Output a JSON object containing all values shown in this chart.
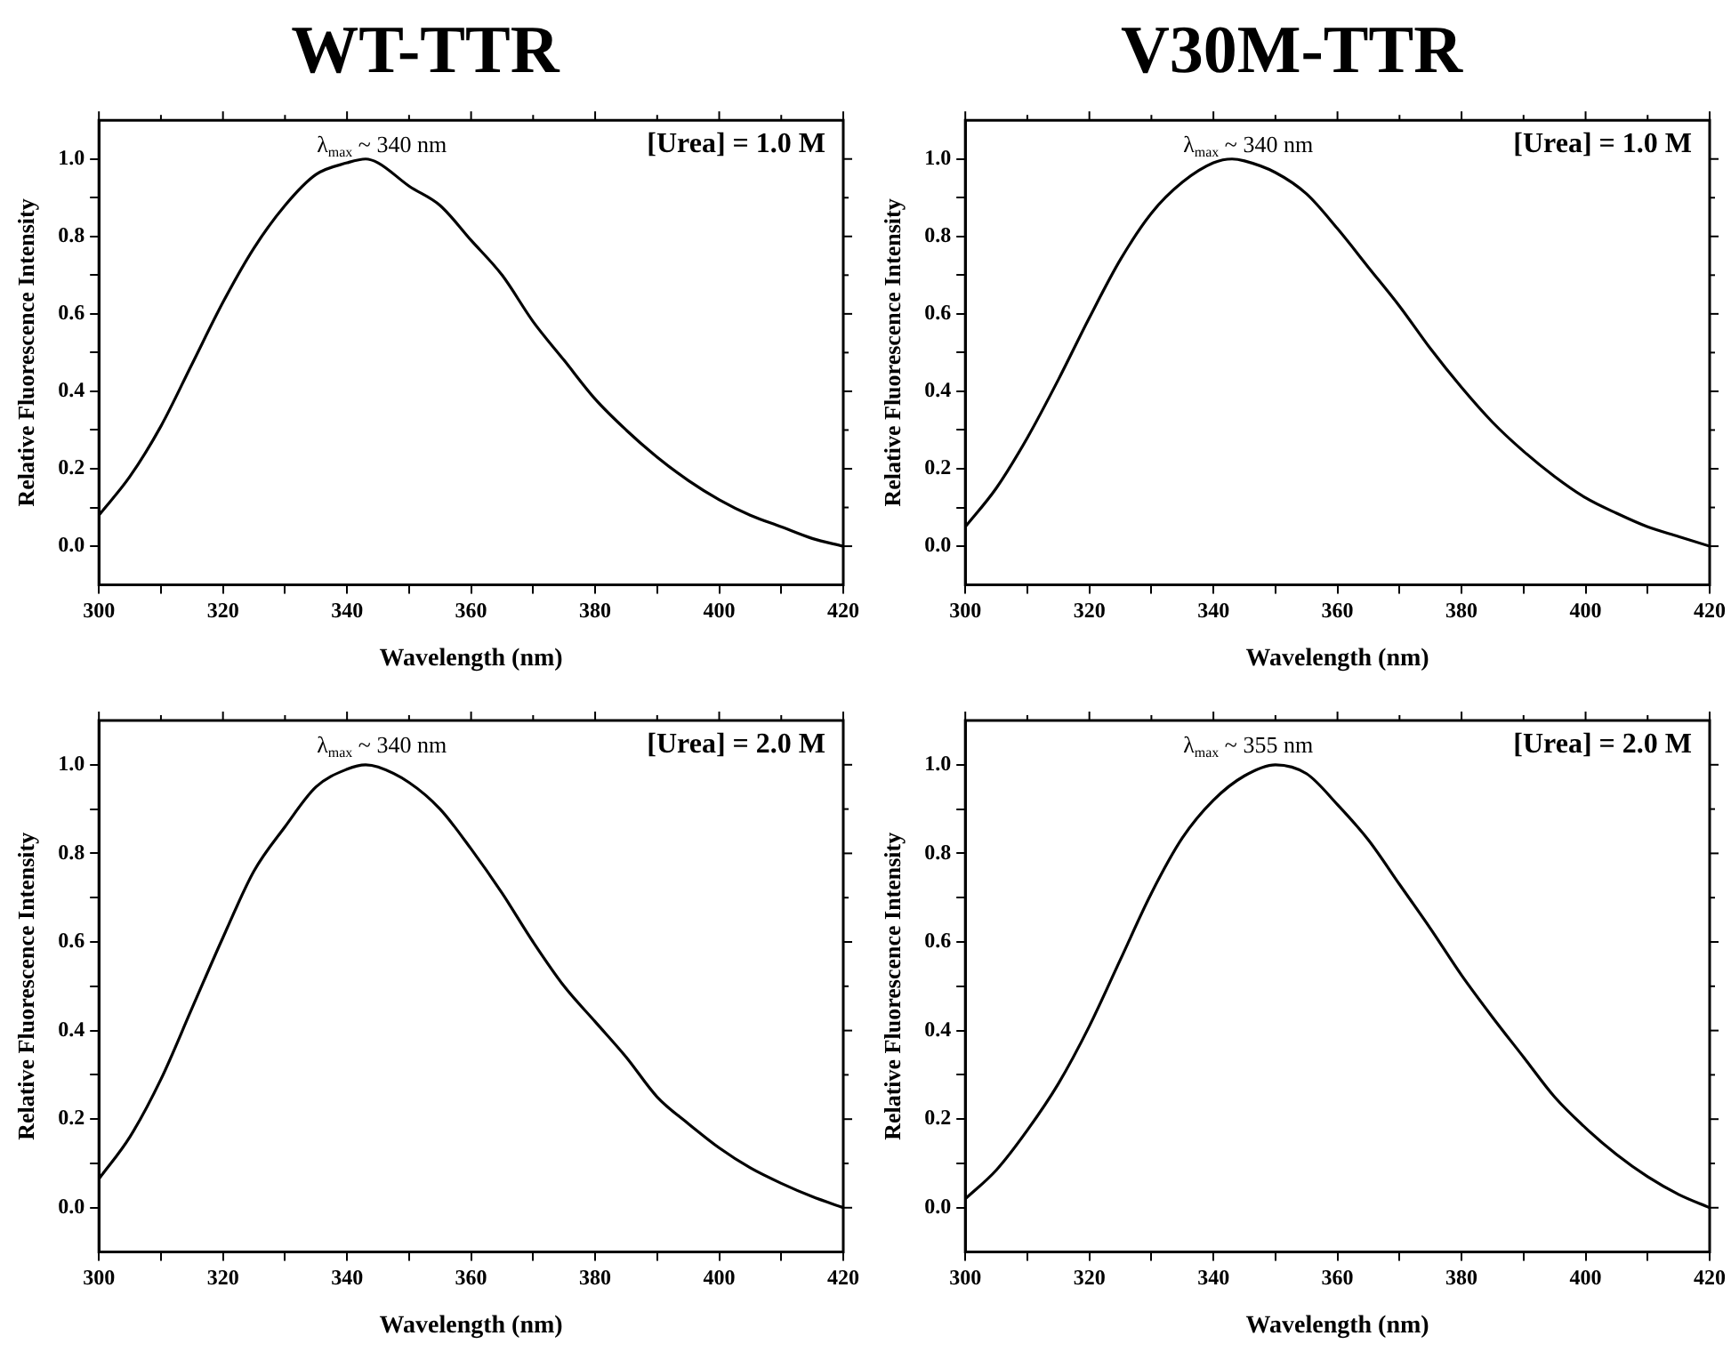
{
  "chart_data": [
    {
      "type": "line",
      "title": "WT-TTR",
      "xlabel": "Wavelength (nm)",
      "ylabel": "Relative Fluorescence Intensity",
      "color": "#000000",
      "x": [
        300,
        305,
        310,
        315,
        320,
        325,
        330,
        335,
        340,
        343,
        345,
        350,
        355,
        360,
        365,
        370,
        375,
        380,
        385,
        390,
        395,
        400,
        405,
        410,
        415,
        420
      ],
      "values": [
        0.08,
        0.18,
        0.31,
        0.47,
        0.63,
        0.77,
        0.88,
        0.96,
        0.99,
        1.0,
        0.99,
        0.93,
        0.88,
        0.79,
        0.7,
        0.58,
        0.48,
        0.38,
        0.3,
        0.23,
        0.17,
        0.12,
        0.08,
        0.05,
        0.02,
        0.0
      ],
      "xlim": [
        300,
        420
      ],
      "ylim": [
        -0.1,
        1.1
      ],
      "xticks": [
        300,
        {
          "value": 310,
          "label": null
        },
        320,
        {
          "value": 330,
          "label": null
        },
        340,
        {
          "value": 350,
          "label": null
        },
        360,
        {
          "value": 370,
          "label": null
        },
        380,
        {
          "value": 390,
          "label": null
        },
        400,
        {
          "value": 410,
          "label": null
        },
        420
      ],
      "yticks": [
        {
          "value": 0,
          "label": "0.0"
        },
        {
          "value": 0.1,
          "label": null
        },
        {
          "value": 0.2,
          "label": "0.2"
        },
        {
          "value": 0.3,
          "label": null
        },
        {
          "value": 0.4,
          "label": "0.4"
        },
        {
          "value": 0.5,
          "label": null
        },
        {
          "value": 0.6,
          "label": "0.6"
        },
        {
          "value": 0.7,
          "label": null
        },
        {
          "value": 0.8,
          "label": "0.8"
        },
        {
          "value": 0.9,
          "label": null
        },
        {
          "value": 1.0,
          "label": "1.0"
        }
      ],
      "annotations": [
        "λ$_{max}$ ~ 340 nm",
        "[Urea] = 1.0 M"
      ]
    },
    {
      "type": "line",
      "title": "V30M-TTR",
      "xlabel": "Wavelength (nm)",
      "ylabel": "Relative Fluorescence Intensity",
      "color": "#000000",
      "x": [
        300,
        305,
        310,
        315,
        320,
        325,
        330,
        335,
        340,
        343,
        345,
        350,
        355,
        360,
        365,
        370,
        375,
        380,
        385,
        390,
        395,
        400,
        405,
        410,
        415,
        420
      ],
      "values": [
        0.05,
        0.15,
        0.28,
        0.43,
        0.59,
        0.74,
        0.86,
        0.94,
        0.99,
        1.0,
        0.995,
        0.965,
        0.91,
        0.82,
        0.72,
        0.62,
        0.51,
        0.41,
        0.32,
        0.245,
        0.18,
        0.125,
        0.085,
        0.05,
        0.025,
        0.0
      ],
      "xlim": [
        300,
        420
      ],
      "ylim": [
        -0.1,
        1.1
      ],
      "xticks": [
        300,
        {
          "value": 310,
          "label": null
        },
        320,
        {
          "value": 330,
          "label": null
        },
        340,
        {
          "value": 350,
          "label": null
        },
        360,
        {
          "value": 370,
          "label": null
        },
        380,
        {
          "value": 390,
          "label": null
        },
        400,
        {
          "value": 410,
          "label": null
        },
        420
      ],
      "yticks": [
        {
          "value": 0,
          "label": "0.0"
        },
        {
          "value": 0.1,
          "label": null
        },
        {
          "value": 0.2,
          "label": "0.2"
        },
        {
          "value": 0.3,
          "label": null
        },
        {
          "value": 0.4,
          "label": "0.4"
        },
        {
          "value": 0.5,
          "label": null
        },
        {
          "value": 0.6,
          "label": "0.6"
        },
        {
          "value": 0.7,
          "label": null
        },
        {
          "value": 0.8,
          "label": "0.8"
        },
        {
          "value": 0.9,
          "label": null
        },
        {
          "value": 1.0,
          "label": "1.0"
        }
      ],
      "annotations": [
        "λ$_{max}$ ~ 340 nm",
        "[Urea] = 1.0 M"
      ]
    },
    {
      "type": "line",
      "xlabel": "Wavelength (nm)",
      "ylabel": "Relative Fluorescence Intensity",
      "color": "#000000",
      "x": [
        300,
        305,
        310,
        315,
        320,
        325,
        330,
        335,
        340,
        343,
        345,
        350,
        355,
        360,
        365,
        370,
        375,
        380,
        385,
        390,
        395,
        400,
        405,
        410,
        415,
        420
      ],
      "values": [
        0.065,
        0.16,
        0.29,
        0.45,
        0.61,
        0.76,
        0.86,
        0.95,
        0.99,
        1.0,
        0.995,
        0.96,
        0.9,
        0.81,
        0.71,
        0.6,
        0.5,
        0.42,
        0.34,
        0.25,
        0.19,
        0.135,
        0.09,
        0.055,
        0.025,
        0.0
      ],
      "xlim": [
        300,
        420
      ],
      "ylim": [
        -0.1,
        1.1
      ],
      "xticks": [
        300,
        {
          "value": 310,
          "label": null
        },
        320,
        {
          "value": 330,
          "label": null
        },
        340,
        {
          "value": 350,
          "label": null
        },
        360,
        {
          "value": 370,
          "label": null
        },
        380,
        {
          "value": 390,
          "label": null
        },
        400,
        {
          "value": 410,
          "label": null
        },
        420
      ],
      "yticks": [
        {
          "value": 0,
          "label": "0.0"
        },
        {
          "value": 0.1,
          "label": null
        },
        {
          "value": 0.2,
          "label": "0.2"
        },
        {
          "value": 0.3,
          "label": null
        },
        {
          "value": 0.4,
          "label": "0.4"
        },
        {
          "value": 0.5,
          "label": null
        },
        {
          "value": 0.6,
          "label": "0.6"
        },
        {
          "value": 0.7,
          "label": null
        },
        {
          "value": 0.8,
          "label": "0.8"
        },
        {
          "value": 0.9,
          "label": null
        },
        {
          "value": 1.0,
          "label": "1.0"
        }
      ],
      "annotations": [
        "λ$_{max}$ ~ 340 nm",
        "[Urea] = 2.0 M"
      ]
    },
    {
      "type": "line",
      "xlabel": "Wavelength (nm)",
      "ylabel": "Relative Fluorescence Intensity",
      "color": "#000000",
      "x": [
        300,
        305,
        310,
        315,
        320,
        325,
        330,
        335,
        340,
        345,
        350,
        355,
        360,
        365,
        370,
        375,
        380,
        385,
        390,
        395,
        400,
        405,
        410,
        415,
        420
      ],
      "values": [
        0.02,
        0.085,
        0.175,
        0.28,
        0.41,
        0.56,
        0.71,
        0.835,
        0.92,
        0.975,
        1.0,
        0.98,
        0.91,
        0.83,
        0.73,
        0.63,
        0.525,
        0.43,
        0.34,
        0.25,
        0.18,
        0.12,
        0.07,
        0.03,
        0.0
      ],
      "xlim": [
        300,
        420
      ],
      "ylim": [
        -0.1,
        1.1
      ],
      "xticks": [
        300,
        {
          "value": 310,
          "label": null
        },
        320,
        {
          "value": 330,
          "label": null
        },
        340,
        {
          "value": 350,
          "label": null
        },
        360,
        {
          "value": 370,
          "label": null
        },
        380,
        {
          "value": 390,
          "label": null
        },
        400,
        {
          "value": 410,
          "label": null
        },
        420
      ],
      "yticks": [
        {
          "value": 0,
          "label": "0.0"
        },
        {
          "value": 0.1,
          "label": null
        },
        {
          "value": 0.2,
          "label": "0.2"
        },
        {
          "value": 0.3,
          "label": null
        },
        {
          "value": 0.4,
          "label": "0.4"
        },
        {
          "value": 0.5,
          "label": null
        },
        {
          "value": 0.6,
          "label": "0.6"
        },
        {
          "value": 0.7,
          "label": null
        },
        {
          "value": 0.8,
          "label": "0.8"
        },
        {
          "value": 0.9,
          "label": null
        },
        {
          "value": 1.0,
          "label": "1.0"
        }
      ],
      "annotations": [
        "λ$_{max}$ ~ 355 nm",
        "[Urea] = 2.0 M"
      ]
    }
  ]
}
